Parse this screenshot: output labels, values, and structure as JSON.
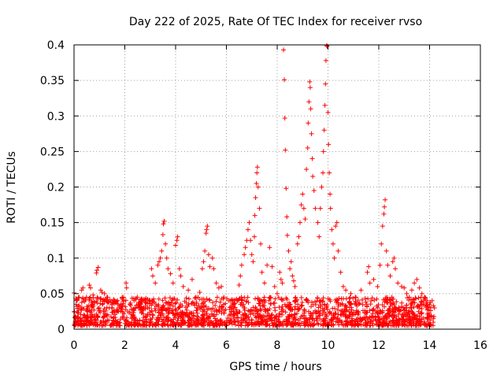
{
  "chart_data": {
    "type": "scatter",
    "title": "Day 222 of 2025, Rate Of TEC Index for receiver rvso",
    "xlabel": "GPS time / hours",
    "ylabel": "ROTI / TECUs",
    "xlim": [
      0,
      16
    ],
    "ylim": [
      0,
      0.4
    ],
    "x_ticks": [
      0,
      2,
      4,
      6,
      8,
      10,
      12,
      14,
      16
    ],
    "x_tick_labels": [
      "0",
      "2",
      "4",
      "6",
      "8",
      "10",
      "12",
      "14",
      "16"
    ],
    "y_ticks": [
      0,
      0.05,
      0.1,
      0.15,
      0.2,
      0.25,
      0.3,
      0.35,
      0.4
    ],
    "y_tick_labels": [
      "0",
      "0.05",
      "0.1",
      "0.15",
      "0.2",
      "0.25",
      "0.3",
      "0.35",
      "0.4"
    ],
    "grid": true,
    "marker": "+",
    "marker_color": "#ff0000",
    "series": [
      {
        "name": "ROTI",
        "points": [
          [
            0.0,
            0.051
          ],
          [
            0.05,
            0.018
          ],
          [
            0.12,
            0.032
          ],
          [
            0.2,
            0.045
          ],
          [
            0.3,
            0.055
          ],
          [
            0.35,
            0.058
          ],
          [
            0.45,
            0.041
          ],
          [
            0.6,
            0.062
          ],
          [
            0.65,
            0.058
          ],
          [
            0.75,
            0.048
          ],
          [
            0.88,
            0.079
          ],
          [
            0.9,
            0.083
          ],
          [
            0.95,
            0.087
          ],
          [
            1.05,
            0.055
          ],
          [
            1.1,
            0.052
          ],
          [
            1.2,
            0.05
          ],
          [
            1.3,
            0.045
          ],
          [
            1.45,
            0.038
          ],
          [
            1.6,
            0.04
          ],
          [
            1.8,
            0.033
          ],
          [
            1.9,
            0.045
          ],
          [
            2.05,
            0.065
          ],
          [
            2.07,
            0.058
          ],
          [
            2.2,
            0.035
          ],
          [
            2.4,
            0.03
          ],
          [
            2.6,
            0.032
          ],
          [
            2.75,
            0.042
          ],
          [
            2.9,
            0.03
          ],
          [
            3.05,
            0.085
          ],
          [
            3.1,
            0.075
          ],
          [
            3.2,
            0.065
          ],
          [
            3.3,
            0.09
          ],
          [
            3.35,
            0.095
          ],
          [
            3.4,
            0.1
          ],
          [
            3.45,
            0.11
          ],
          [
            3.5,
            0.133
          ],
          [
            3.52,
            0.148
          ],
          [
            3.55,
            0.152
          ],
          [
            3.6,
            0.12
          ],
          [
            3.65,
            0.1
          ],
          [
            3.7,
            0.085
          ],
          [
            3.8,
            0.078
          ],
          [
            3.9,
            0.065
          ],
          [
            4.0,
            0.118
          ],
          [
            4.05,
            0.125
          ],
          [
            4.08,
            0.13
          ],
          [
            4.15,
            0.085
          ],
          [
            4.2,
            0.075
          ],
          [
            4.3,
            0.06
          ],
          [
            4.5,
            0.055
          ],
          [
            4.65,
            0.07
          ],
          [
            4.8,
            0.045
          ],
          [
            4.95,
            0.052
          ],
          [
            5.05,
            0.085
          ],
          [
            5.1,
            0.095
          ],
          [
            5.15,
            0.11
          ],
          [
            5.2,
            0.135
          ],
          [
            5.22,
            0.14
          ],
          [
            5.25,
            0.145
          ],
          [
            5.3,
            0.105
          ],
          [
            5.35,
            0.088
          ],
          [
            5.45,
            0.1
          ],
          [
            5.5,
            0.085
          ],
          [
            5.6,
            0.065
          ],
          [
            5.7,
            0.058
          ],
          [
            5.8,
            0.06
          ],
          [
            5.9,
            0.045
          ],
          [
            6.1,
            0.04
          ],
          [
            6.3,
            0.035
          ],
          [
            6.5,
            0.062
          ],
          [
            6.55,
            0.075
          ],
          [
            6.6,
            0.09
          ],
          [
            6.7,
            0.105
          ],
          [
            6.75,
            0.115
          ],
          [
            6.8,
            0.125
          ],
          [
            6.85,
            0.14
          ],
          [
            6.9,
            0.15
          ],
          [
            6.95,
            0.125
          ],
          [
            7.0,
            0.105
          ],
          [
            7.05,
            0.095
          ],
          [
            7.1,
            0.13
          ],
          [
            7.12,
            0.16
          ],
          [
            7.15,
            0.185
          ],
          [
            7.18,
            0.205
          ],
          [
            7.2,
            0.22
          ],
          [
            7.22,
            0.228
          ],
          [
            7.25,
            0.2
          ],
          [
            7.3,
            0.17
          ],
          [
            7.35,
            0.12
          ],
          [
            7.4,
            0.08
          ],
          [
            7.5,
            0.065
          ],
          [
            7.6,
            0.09
          ],
          [
            7.7,
            0.115
          ],
          [
            7.8,
            0.088
          ],
          [
            7.9,
            0.06
          ],
          [
            8.0,
            0.05
          ],
          [
            8.1,
            0.08
          ],
          [
            8.15,
            0.07
          ],
          [
            8.2,
            0.065
          ],
          [
            8.25,
            0.393
          ],
          [
            8.28,
            0.351
          ],
          [
            8.3,
            0.297
          ],
          [
            8.32,
            0.252
          ],
          [
            8.35,
            0.198
          ],
          [
            8.38,
            0.158
          ],
          [
            8.4,
            0.132
          ],
          [
            8.45,
            0.11
          ],
          [
            8.5,
            0.085
          ],
          [
            8.55,
            0.095
          ],
          [
            8.6,
            0.075
          ],
          [
            8.65,
            0.068
          ],
          [
            8.7,
            0.06
          ],
          [
            8.8,
            0.12
          ],
          [
            8.85,
            0.13
          ],
          [
            8.9,
            0.15
          ],
          [
            8.95,
            0.175
          ],
          [
            9.0,
            0.19
          ],
          [
            9.05,
            0.17
          ],
          [
            9.1,
            0.155
          ],
          [
            9.15,
            0.225
          ],
          [
            9.2,
            0.255
          ],
          [
            9.22,
            0.29
          ],
          [
            9.25,
            0.32
          ],
          [
            9.28,
            0.348
          ],
          [
            9.3,
            0.34
          ],
          [
            9.32,
            0.31
          ],
          [
            9.35,
            0.275
          ],
          [
            9.38,
            0.24
          ],
          [
            9.4,
            0.215
          ],
          [
            9.45,
            0.195
          ],
          [
            9.5,
            0.17
          ],
          [
            9.6,
            0.15
          ],
          [
            9.65,
            0.13
          ],
          [
            9.7,
            0.17
          ],
          [
            9.75,
            0.2
          ],
          [
            9.8,
            0.22
          ],
          [
            9.82,
            0.25
          ],
          [
            9.85,
            0.28
          ],
          [
            9.88,
            0.315
          ],
          [
            9.9,
            0.345
          ],
          [
            9.92,
            0.378
          ],
          [
            9.95,
            0.399
          ],
          [
            9.97,
            0.398
          ],
          [
            10.0,
            0.305
          ],
          [
            10.02,
            0.26
          ],
          [
            10.05,
            0.22
          ],
          [
            10.08,
            0.19
          ],
          [
            10.1,
            0.17
          ],
          [
            10.15,
            0.14
          ],
          [
            10.2,
            0.12
          ],
          [
            10.25,
            0.1
          ],
          [
            10.3,
            0.145
          ],
          [
            10.35,
            0.15
          ],
          [
            10.4,
            0.11
          ],
          [
            10.5,
            0.08
          ],
          [
            10.6,
            0.06
          ],
          [
            10.7,
            0.055
          ],
          [
            10.9,
            0.05
          ],
          [
            11.1,
            0.045
          ],
          [
            11.3,
            0.055
          ],
          [
            11.55,
            0.08
          ],
          [
            11.6,
            0.088
          ],
          [
            11.65,
            0.065
          ],
          [
            11.8,
            0.07
          ],
          [
            11.95,
            0.06
          ],
          [
            12.05,
            0.09
          ],
          [
            12.1,
            0.12
          ],
          [
            12.15,
            0.145
          ],
          [
            12.2,
            0.162
          ],
          [
            12.22,
            0.172
          ],
          [
            12.25,
            0.182
          ],
          [
            12.3,
            0.11
          ],
          [
            12.35,
            0.09
          ],
          [
            12.45,
            0.075
          ],
          [
            12.55,
            0.095
          ],
          [
            12.6,
            0.1
          ],
          [
            12.65,
            0.085
          ],
          [
            12.75,
            0.065
          ],
          [
            12.9,
            0.06
          ],
          [
            13.0,
            0.058
          ],
          [
            13.1,
            0.05
          ],
          [
            13.2,
            0.045
          ],
          [
            13.3,
            0.055
          ],
          [
            13.4,
            0.065
          ],
          [
            13.5,
            0.07
          ],
          [
            13.6,
            0.058
          ],
          [
            13.7,
            0.05
          ],
          [
            13.8,
            0.045
          ],
          [
            13.9,
            0.04
          ],
          [
            14.0,
            0.035
          ],
          [
            14.1,
            0.04
          ],
          [
            14.15,
            0.033
          ]
        ],
        "baseline_band": {
          "x_range": [
            0,
            14.2
          ],
          "approx_y_range": [
            0.005,
            0.045
          ],
          "note": "dense cluster of points between about 0.01 and 0.04 TECUs across 0-14.2 h"
        }
      }
    ]
  }
}
